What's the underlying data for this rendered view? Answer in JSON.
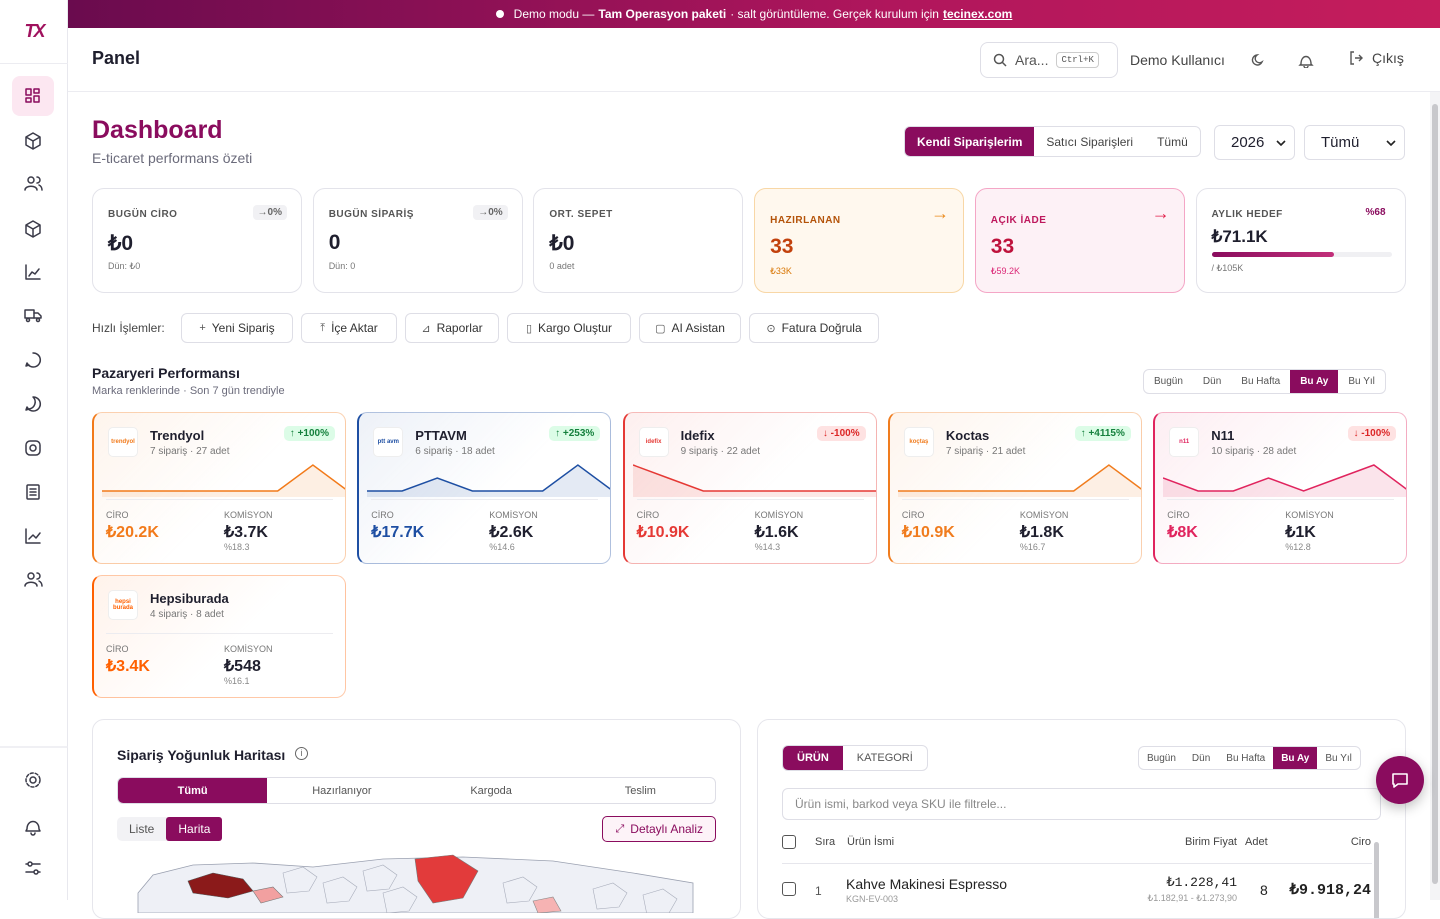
{
  "banner": {
    "lead": "Demo modu —",
    "package": "Tam Operasyon paketi",
    "rest": "· salt görüntüleme. Gerçek kurulum için",
    "link": "tecinex.com"
  },
  "logo": "TX",
  "header": {
    "title": "Panel",
    "search": "Ara...",
    "shortcut": "Ctrl+K",
    "user": "Demo Kullanıcı",
    "logout": "Çıkış"
  },
  "dashboard": {
    "title": "Dashboard",
    "subtitle": "E-ticaret performans özeti",
    "tabs": [
      "Kendi Siparişlerim",
      "Satıcı Siparişleri",
      "Tümü"
    ],
    "active_tab": 0,
    "year": "2026",
    "filter": "Tümü"
  },
  "kpis": [
    {
      "label": "BUGÜN CİRO",
      "change": "→0%",
      "value": "₺0",
      "sub": "Dün: ₺0"
    },
    {
      "label": "BUGÜN SİPARİŞ",
      "change": "→0%",
      "value": "0",
      "sub": "Dün: 0"
    },
    {
      "label": "ORT. SEPET",
      "value": "₺0",
      "sub": "0 adet"
    },
    {
      "label": "HAZIRLANAN",
      "value": "33",
      "sub": "₺33K"
    },
    {
      "label": "AÇIK İADE",
      "value": "33",
      "sub": "₺59.2K"
    },
    {
      "label": "AYLIK HEDEF",
      "change": "%68",
      "value": "₺71.1K",
      "sub": "/ ₺105K",
      "progress": 68
    }
  ],
  "quick_actions": {
    "label": "Hızlı İşlemler:",
    "items": [
      "Yeni Sipariş",
      "İçe Aktar",
      "Raporlar",
      "Kargo Oluştur",
      "AI Asistan",
      "Fatura Doğrula"
    ]
  },
  "marketplace": {
    "title": "Pazaryeri Performansı",
    "subtitle": "Marka renklerinde · Son 7 gün trendiyle",
    "periods": [
      "Bugün",
      "Dün",
      "Bu Hafta",
      "Bu Ay",
      "Bu Yıl"
    ],
    "active_period": 3,
    "cards": [
      {
        "name": "Trendyol",
        "logo": "trendyol",
        "meta": "7 sipariş · 27 adet",
        "change": "↑ +100%",
        "ciro_label": "CİRO",
        "ciro": "₺20.2K",
        "kom_label": "KOMİSYON",
        "kom": "₺3.7K",
        "rate": "%18.3",
        "color": "#f27a1a",
        "trend": [
          0,
          0,
          0,
          0,
          0,
          0,
          1,
          0
        ]
      },
      {
        "name": "PTTAVM",
        "logo": "ptt avm",
        "meta": "6 sipariş · 18 adet",
        "change": "↑ +253%",
        "ciro_label": "CİRO",
        "ciro": "₺17.7K",
        "kom_label": "KOMİSYON",
        "kom": "₺2.6K",
        "rate": "%14.6",
        "color": "#1e4fa3",
        "trend": [
          0,
          0,
          1,
          0,
          0,
          0,
          2,
          0
        ]
      },
      {
        "name": "Idefix",
        "logo": "idefix",
        "meta": "9 sipariş · 22 adet",
        "change": "↓ -100%",
        "ciro_label": "CİRO",
        "ciro": "₺10.9K",
        "kom_label": "KOMİSYON",
        "kom": "₺1.6K",
        "rate": "%14.3",
        "color": "#e53935",
        "trend": [
          2,
          1,
          0,
          0,
          0,
          0,
          0,
          0
        ]
      },
      {
        "name": "Koctas",
        "logo": "koçtaş",
        "meta": "7 sipariş · 21 adet",
        "change": "↑ +4115%",
        "ciro_label": "CİRO",
        "ciro": "₺10.9K",
        "kom_label": "KOMİSYON",
        "kom": "₺1.8K",
        "rate": "%16.7",
        "color": "#f07c1e",
        "trend": [
          0,
          0,
          0,
          0,
          0,
          0,
          1,
          0
        ]
      },
      {
        "name": "N11",
        "logo": "n11",
        "meta": "10 sipariş · 28 adet",
        "change": "↓ -100%",
        "ciro_label": "CİRO",
        "ciro": "₺8K",
        "kom_label": "KOMİSYON",
        "kom": "₺1K",
        "rate": "%12.8",
        "color": "#e0245e",
        "trend": [
          1,
          0,
          0,
          1,
          0,
          1,
          2,
          0
        ]
      },
      {
        "name": "Hepsiburada",
        "logo": "hepsi burada",
        "meta": "4 sipariş · 8 adet",
        "ciro_label": "CİRO",
        "ciro": "₺3.4K",
        "kom_label": "KOMİSYON",
        "kom": "₺548",
        "rate": "%16.1",
        "color": "#ff6000"
      }
    ]
  },
  "heatmap": {
    "title": "Sipariş Yoğunluk Haritası",
    "tabs": [
      "Tümü",
      "Hazırlanıyor",
      "Kargoda",
      "Teslim"
    ],
    "views": [
      "Liste",
      "Harita"
    ],
    "button": "Detaylı Analiz"
  },
  "products": {
    "tabs": [
      "ÜRÜN",
      "KATEGORİ"
    ],
    "periods": [
      "Bugün",
      "Dün",
      "Bu Hafta",
      "Bu Ay",
      "Bu Yıl"
    ],
    "active_period": 3,
    "filter": "Ürün ismi, barkod veya SKU ile filtrele...",
    "columns": [
      "Sıra",
      "Ürün İsmi",
      "Birim Fiyat",
      "Adet",
      "Ciro"
    ],
    "rows": [
      {
        "rank": 1,
        "name": "Kahve Makinesi Espresso",
        "sku": "KGN-EV-003",
        "price": "₺1.228,41",
        "range": "₺1.182,91 - ₺1.273,90",
        "qty": 8,
        "ciro": "₺9.918,24"
      }
    ]
  }
}
